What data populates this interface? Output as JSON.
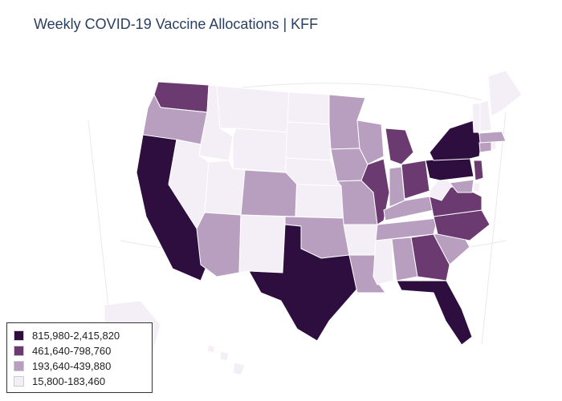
{
  "title": "Weekly COVID-19 Vaccine Allocations | KFF",
  "legend": {
    "items": [
      {
        "label": "815,980-2,415,820",
        "color": "#2d0e3e"
      },
      {
        "label": "461,640-798,760",
        "color": "#6b3a70"
      },
      {
        "label": "193,640-439,880",
        "color": "#b89fc0"
      },
      {
        "label": "15,800-183,460",
        "color": "#f4eef6"
      }
    ]
  },
  "states": [
    {
      "name": "WA",
      "bin": 1
    },
    {
      "name": "OR",
      "bin": 2
    },
    {
      "name": "CA",
      "bin": 0
    },
    {
      "name": "ID",
      "bin": 3
    },
    {
      "name": "NV",
      "bin": 3
    },
    {
      "name": "MT",
      "bin": 3
    },
    {
      "name": "WY",
      "bin": 3
    },
    {
      "name": "UT",
      "bin": 3
    },
    {
      "name": "AZ",
      "bin": 2
    },
    {
      "name": "CO",
      "bin": 2
    },
    {
      "name": "NM",
      "bin": 3
    },
    {
      "name": "ND",
      "bin": 3
    },
    {
      "name": "SD",
      "bin": 3
    },
    {
      "name": "NE",
      "bin": 3
    },
    {
      "name": "KS",
      "bin": 3
    },
    {
      "name": "OK",
      "bin": 2
    },
    {
      "name": "TX",
      "bin": 0
    },
    {
      "name": "MN",
      "bin": 2
    },
    {
      "name": "IA",
      "bin": 2
    },
    {
      "name": "MO",
      "bin": 2
    },
    {
      "name": "AR",
      "bin": 3
    },
    {
      "name": "LA",
      "bin": 2
    },
    {
      "name": "WI",
      "bin": 2
    },
    {
      "name": "IL",
      "bin": 1
    },
    {
      "name": "MI",
      "bin": 1
    },
    {
      "name": "IN",
      "bin": 2
    },
    {
      "name": "OH",
      "bin": 1
    },
    {
      "name": "KY",
      "bin": 2
    },
    {
      "name": "TN",
      "bin": 2
    },
    {
      "name": "MS",
      "bin": 3
    },
    {
      "name": "AL",
      "bin": 2
    },
    {
      "name": "GA",
      "bin": 1
    },
    {
      "name": "FL",
      "bin": 0
    },
    {
      "name": "SC",
      "bin": 2
    },
    {
      "name": "NC",
      "bin": 1
    },
    {
      "name": "VA",
      "bin": 1
    },
    {
      "name": "WV",
      "bin": 3
    },
    {
      "name": "PA",
      "bin": 0
    },
    {
      "name": "NY",
      "bin": 0
    },
    {
      "name": "NJ",
      "bin": 1
    },
    {
      "name": "DE",
      "bin": 3
    },
    {
      "name": "MD",
      "bin": 2
    },
    {
      "name": "CT",
      "bin": 2
    },
    {
      "name": "RI",
      "bin": 3
    },
    {
      "name": "MA",
      "bin": 2
    },
    {
      "name": "VT",
      "bin": 3
    },
    {
      "name": "NH",
      "bin": 3
    },
    {
      "name": "ME",
      "bin": 3
    },
    {
      "name": "AK",
      "bin": 3
    },
    {
      "name": "HI",
      "bin": 3
    }
  ]
}
